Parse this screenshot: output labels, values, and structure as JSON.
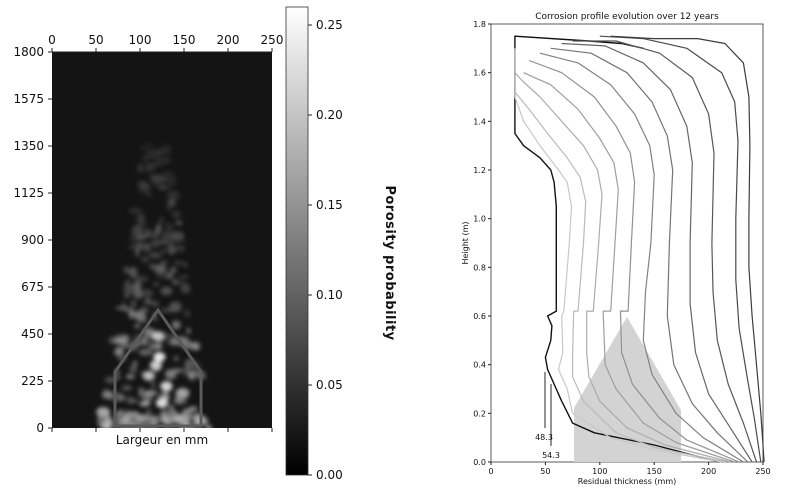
{
  "chart_data": [
    {
      "type": "heatmap",
      "title": "",
      "xlabel": "Largeur en mm",
      "ylabel": "",
      "x_ticks": [
        "0",
        "50",
        "100",
        "150",
        "200",
        "250"
      ],
      "y_ticks": [
        "1800",
        "1575",
        "1350",
        "1125",
        "900",
        "675",
        "450",
        "225",
        "0"
      ],
      "xlim": [
        0,
        250
      ],
      "ylim": [
        0,
        1800
      ],
      "colorbar": {
        "label": "Porosity probability",
        "ticks": [
          "0.25",
          "0.20",
          "0.15",
          "0.10",
          "0.05",
          "0.00"
        ],
        "range": [
          0,
          0.26
        ],
        "colormap": "gray"
      },
      "outline_shape": "house-shaped polygon",
      "background_color": "#141414"
    },
    {
      "type": "line",
      "title": "Corrosion profile evolution over 12 years",
      "xlabel": "Residual thickness (mm)",
      "ylabel": "Height (m)",
      "x_ticks": [
        "0",
        "50",
        "100",
        "150",
        "200",
        "250"
      ],
      "y_ticks": [
        "0.0",
        "0.2",
        "0.4",
        "0.6",
        "0.8",
        "1.0",
        "1.2",
        "1.4",
        "1.6",
        "1.8"
      ],
      "xlim": [
        0,
        250
      ],
      "ylim": [
        0,
        1.8
      ],
      "annotations": [
        "48.3",
        "54.3"
      ],
      "series_count": 12,
      "series": [
        {
          "points": [
            [
              210,
              0
            ],
            [
              150,
              0.07
            ],
            [
              95,
              0.12
            ],
            [
              75,
              0.16
            ],
            [
              65,
              0.25
            ],
            [
              58,
              0.32
            ],
            [
              52,
              0.38
            ],
            [
              50,
              0.43
            ],
            [
              55,
              0.5
            ],
            [
              56,
              0.56
            ],
            [
              52,
              0.6
            ],
            [
              60,
              0.62
            ],
            [
              60,
              0.9
            ],
            [
              60,
              1.05
            ],
            [
              58,
              1.15
            ],
            [
              55,
              1.2
            ],
            [
              45,
              1.25
            ],
            [
              30,
              1.3
            ],
            [
              22,
              1.35
            ],
            [
              22,
              1.75
            ],
            [
              90,
              1.73
            ],
            [
              120,
              1.72
            ],
            [
              140,
              1.7
            ]
          ]
        },
        {
          "points": [
            [
              212,
              0
            ],
            [
              150,
              0.05
            ],
            [
              110,
              0.1
            ],
            [
              75,
              0.2
            ],
            [
              70,
              0.3
            ],
            [
              62,
              0.38
            ],
            [
              66,
              0.45
            ],
            [
              65,
              0.6
            ],
            [
              67,
              0.62
            ],
            [
              72,
              0.9
            ],
            [
              74,
              1.05
            ],
            [
              70,
              1.15
            ],
            [
              62,
              1.2
            ],
            [
              45,
              1.3
            ],
            [
              30,
              1.4
            ],
            [
              22,
              1.5
            ],
            [
              22,
              1.7
            ]
          ]
        },
        {
          "points": [
            [
              216,
              0
            ],
            [
              150,
              0.06
            ],
            [
              115,
              0.12
            ],
            [
              85,
              0.25
            ],
            [
              75,
              0.35
            ],
            [
              75,
              0.45
            ],
            [
              76,
              0.62
            ],
            [
              80,
              0.62
            ],
            [
              85,
              0.9
            ],
            [
              87,
              1.07
            ],
            [
              82,
              1.17
            ],
            [
              70,
              1.25
            ],
            [
              52,
              1.35
            ],
            [
              35,
              1.45
            ],
            [
              22,
              1.52
            ],
            [
              22,
              1.66
            ]
          ]
        },
        {
          "points": [
            [
              220,
              0
            ],
            [
              160,
              0.07
            ],
            [
              125,
              0.14
            ],
            [
              100,
              0.25
            ],
            [
              90,
              0.35
            ],
            [
              88,
              0.45
            ],
            [
              88,
              0.62
            ],
            [
              94,
              0.62
            ],
            [
              99,
              0.9
            ],
            [
              102,
              1.1
            ],
            [
              98,
              1.2
            ],
            [
              85,
              1.3
            ],
            [
              65,
              1.4
            ],
            [
              45,
              1.5
            ],
            [
              28,
              1.57
            ],
            [
              22,
              1.6
            ]
          ]
        },
        {
          "points": [
            [
              224,
              0
            ],
            [
              170,
              0.08
            ],
            [
              140,
              0.16
            ],
            [
              115,
              0.3
            ],
            [
              105,
              0.4
            ],
            [
              103,
              0.62
            ],
            [
              110,
              0.62
            ],
            [
              114,
              0.9
            ],
            [
              117,
              1.12
            ],
            [
              113,
              1.23
            ],
            [
              100,
              1.33
            ],
            [
              80,
              1.45
            ],
            [
              55,
              1.55
            ],
            [
              30,
              1.6
            ]
          ]
        },
        {
          "points": [
            [
              228,
              0
            ],
            [
              180,
              0.09
            ],
            [
              155,
              0.18
            ],
            [
              130,
              0.32
            ],
            [
              120,
              0.45
            ],
            [
              119,
              0.62
            ],
            [
              126,
              0.62
            ],
            [
              129,
              0.9
            ],
            [
              132,
              1.15
            ],
            [
              128,
              1.27
            ],
            [
              115,
              1.38
            ],
            [
              95,
              1.5
            ],
            [
              65,
              1.6
            ],
            [
              35,
              1.65
            ]
          ]
        },
        {
          "points": [
            [
              232,
              0
            ],
            [
              195,
              0.1
            ],
            [
              170,
              0.2
            ],
            [
              148,
              0.36
            ],
            [
              140,
              0.5
            ],
            [
              142,
              0.7
            ],
            [
              147,
              0.9
            ],
            [
              150,
              1.18
            ],
            [
              146,
              1.3
            ],
            [
              132,
              1.43
            ],
            [
              110,
              1.55
            ],
            [
              80,
              1.64
            ],
            [
              45,
              1.68
            ]
          ]
        },
        {
          "points": [
            [
              236,
              0
            ],
            [
              208,
              0.12
            ],
            [
              185,
              0.24
            ],
            [
              168,
              0.4
            ],
            [
              162,
              0.6
            ],
            [
              164,
              0.9
            ],
            [
              167,
              1.2
            ],
            [
              162,
              1.34
            ],
            [
              148,
              1.48
            ],
            [
              125,
              1.6
            ],
            [
              92,
              1.68
            ],
            [
              55,
              1.7
            ]
          ]
        },
        {
          "points": [
            [
              240,
              0
            ],
            [
              220,
              0.14
            ],
            [
              200,
              0.28
            ],
            [
              188,
              0.45
            ],
            [
              183,
              0.65
            ],
            [
              183,
              0.9
            ],
            [
              185,
              1.23
            ],
            [
              180,
              1.38
            ],
            [
              165,
              1.53
            ],
            [
              140,
              1.64
            ],
            [
              105,
              1.71
            ],
            [
              65,
              1.72
            ]
          ]
        },
        {
          "points": [
            [
              244,
              0
            ],
            [
              232,
              0.16
            ],
            [
              218,
              0.32
            ],
            [
              208,
              0.5
            ],
            [
              204,
              0.7
            ],
            [
              203,
              0.9
            ],
            [
              205,
              1.27
            ],
            [
              200,
              1.43
            ],
            [
              185,
              1.58
            ],
            [
              155,
              1.68
            ],
            [
              115,
              1.73
            ],
            [
              75,
              1.73
            ]
          ]
        },
        {
          "points": [
            [
              248,
              0
            ],
            [
              242,
              0.18
            ],
            [
              235,
              0.36
            ],
            [
              228,
              0.55
            ],
            [
              225,
              0.75
            ],
            [
              225,
              1.0
            ],
            [
              227,
              1.32
            ],
            [
              224,
              1.48
            ],
            [
              212,
              1.6
            ],
            [
              180,
              1.7
            ],
            [
              140,
              1.74
            ],
            [
              100,
              1.75
            ]
          ]
        },
        {
          "points": [
            [
              251,
              0
            ],
            [
              248,
              0.2
            ],
            [
              244,
              0.4
            ],
            [
              240,
              0.6
            ],
            [
              237,
              0.8
            ],
            [
              237,
              1.0
            ],
            [
              238,
              1.3
            ],
            [
              237,
              1.5
            ],
            [
              232,
              1.64
            ],
            [
              215,
              1.72
            ],
            [
              190,
              1.74
            ],
            [
              150,
              1.74
            ],
            [
              110,
              1.75
            ]
          ]
        }
      ]
    }
  ]
}
